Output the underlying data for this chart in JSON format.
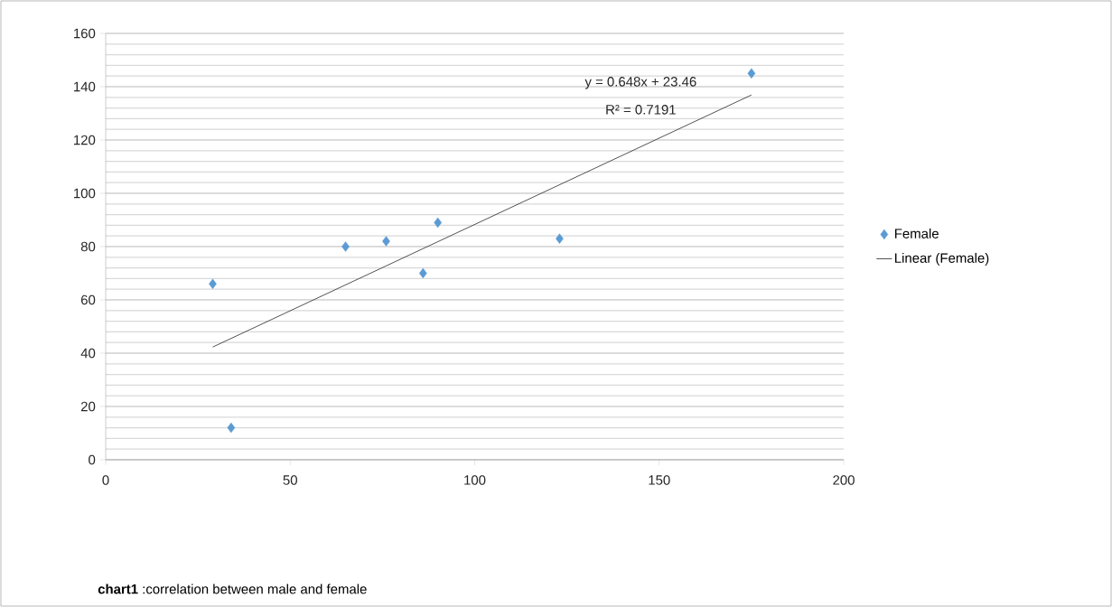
{
  "chart_data": {
    "type": "scatter",
    "xlim": [
      0,
      200
    ],
    "xticks": [
      0,
      50,
      100,
      150,
      200
    ],
    "ylim": [
      0,
      160
    ],
    "yticks": [
      0,
      20,
      40,
      60,
      80,
      100,
      120,
      140,
      160
    ],
    "grid": "y",
    "legend": "right",
    "series": [
      {
        "name": "Female",
        "marker": "diamond",
        "color": "#5b9bd5",
        "x": [
          29,
          34,
          65,
          76,
          86,
          90,
          123,
          175
        ],
        "values": [
          66,
          12,
          80,
          82,
          70,
          89,
          83,
          145
        ]
      },
      {
        "name": "Linear (Female)",
        "type": "line",
        "color": "#404040",
        "x": [
          29,
          175
        ],
        "values": [
          42.3,
          136.9
        ]
      }
    ],
    "annotations": [
      "y = 0.648x + 23.46",
      "R² = 0.7191",
      "**chart1**  :correlation between male and female"
    ]
  }
}
